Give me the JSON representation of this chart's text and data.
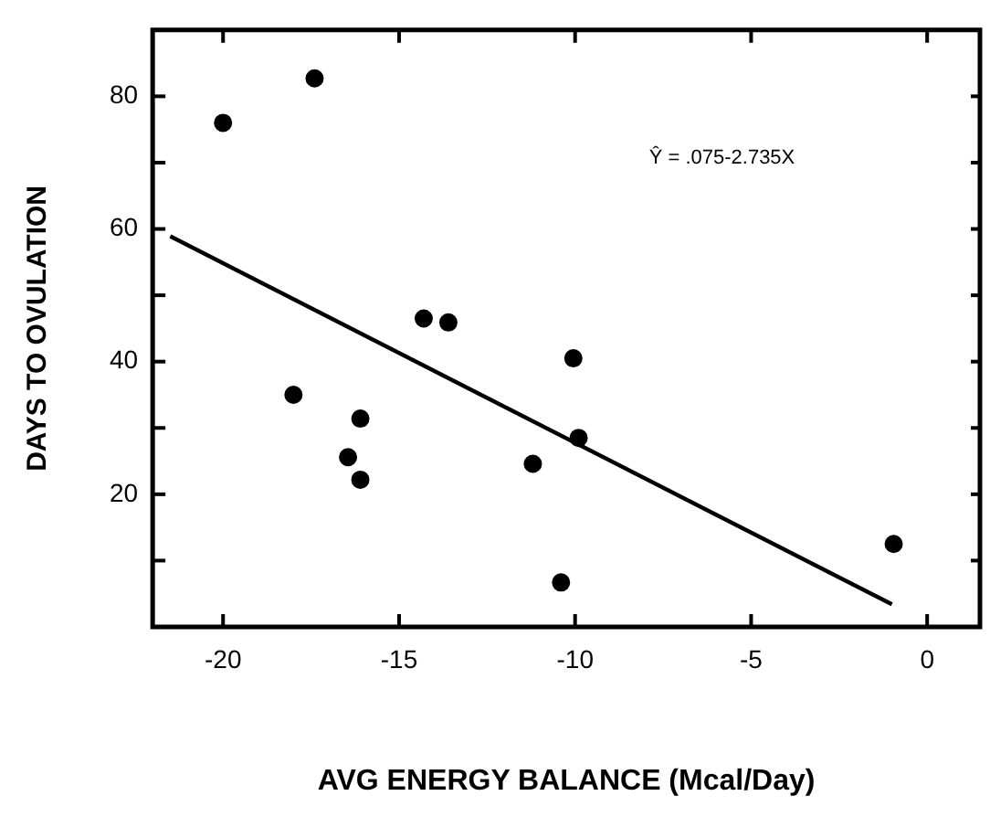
{
  "chart_data": {
    "type": "scatter",
    "xlabel": "AVG ENERGY BALANCE (Mcal/Day)",
    "ylabel": "DAYS TO OVULATION",
    "marker": "circle",
    "x": [
      -20,
      -17.4,
      -14.3,
      -13.6,
      -18,
      -16.1,
      -16.45,
      -16.1,
      -10.05,
      -9.9,
      -11.2,
      -10.4,
      -0.95
    ],
    "series": [
      {
        "color": "#000000",
        "values": [
          76,
          82.7,
          46.5,
          45.9,
          35,
          31.4,
          25.6,
          22.2,
          40.5,
          28.5,
          24.6,
          6.7,
          12.5
        ]
      },
      {
        "type": "line",
        "marker": "none",
        "color": "#000000",
        "x": [
          -21.5,
          -1
        ],
        "values": [
          58.9,
          3.4
        ]
      }
    ],
    "xlim": [
      -22,
      1.5
    ],
    "ylim": [
      0,
      90
    ],
    "xticks": [
      -20,
      -15,
      -10,
      -5,
      0
    ],
    "yticks": [
      {
        "value": 10,
        "label": null
      },
      20,
      {
        "value": 30,
        "label": null
      },
      40,
      {
        "value": 50,
        "label": null
      },
      60,
      {
        "value": 70,
        "label": null
      },
      80
    ],
    "annotations": [
      "Ŷ = .075-2.735X"
    ]
  }
}
